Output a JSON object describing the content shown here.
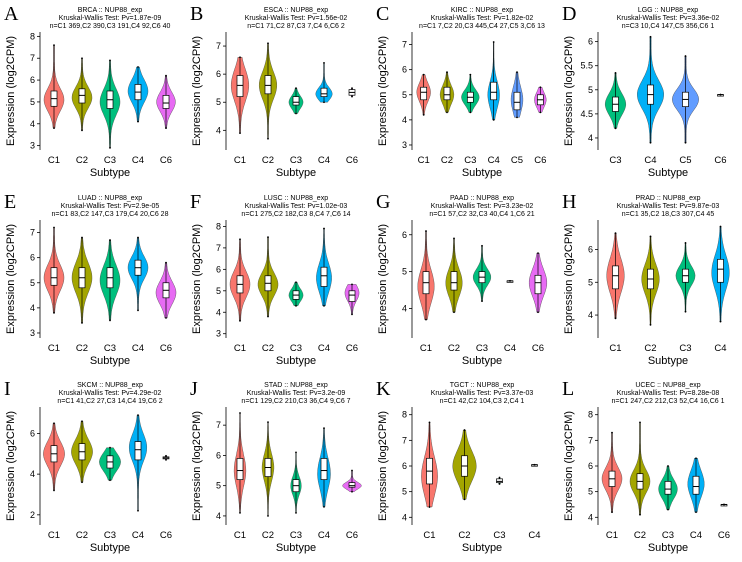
{
  "colors": {
    "C1": "#F8766D",
    "C2": "#A3A500",
    "C3": "#00BF7D",
    "C4": "#00B0F6",
    "C5": "#619CFF",
    "C6": "#E76BF3"
  },
  "chart_data": [
    {
      "letter": "A",
      "type": "violin",
      "title": "BRCA :: NUP88_exp",
      "subtitle": "Kruskal-Wallis Test: Pv=1.87e-09",
      "counts": "n=C1 369,C2 390,C3 191,C4 92,C6 40",
      "xlabel": "Subtype",
      "ylabel": "Expression (log2CPM)",
      "ylim": [
        2.8,
        8.2
      ],
      "yticks": [
        3,
        4,
        5,
        6,
        7,
        8
      ],
      "groups": [
        {
          "name": "C1",
          "min": 3.8,
          "q1": 4.8,
          "median": 5.15,
          "q3": 5.5,
          "max": 7.6,
          "mode": 5.1,
          "width": 0.85
        },
        {
          "name": "C2",
          "min": 3.7,
          "q1": 4.95,
          "median": 5.3,
          "q3": 5.6,
          "max": 7.0,
          "mode": 5.2,
          "width": 0.85
        },
        {
          "name": "C3",
          "min": 2.9,
          "q1": 4.7,
          "median": 5.1,
          "q3": 5.5,
          "max": 6.9,
          "mode": 5.0,
          "width": 0.85
        },
        {
          "name": "C4",
          "min": 4.1,
          "q1": 5.1,
          "median": 5.45,
          "q3": 5.8,
          "max": 6.6,
          "mode": 5.5,
          "width": 0.85
        },
        {
          "name": "C6",
          "min": 3.8,
          "q1": 4.7,
          "median": 4.95,
          "q3": 5.3,
          "max": 6.2,
          "mode": 5.0,
          "width": 0.8
        }
      ]
    },
    {
      "letter": "B",
      "type": "violin",
      "title": "ESCA :: NUP88_exp",
      "subtitle": "Kruskal-Wallis Test: Pv=1.56e-02",
      "counts": "n=C1 71,C2 87,C3 7,C4 6,C6 2",
      "xlabel": "Subtype",
      "ylabel": "Expression (log2CPM)",
      "ylim": [
        3.3,
        7.5
      ],
      "yticks": [
        4,
        5,
        6,
        7
      ],
      "groups": [
        {
          "name": "C1",
          "min": 3.9,
          "q1": 5.2,
          "median": 5.6,
          "q3": 5.95,
          "max": 6.6,
          "mode": 5.6,
          "width": 0.75
        },
        {
          "name": "C2",
          "min": 3.7,
          "q1": 5.3,
          "median": 5.6,
          "q3": 5.95,
          "max": 7.1,
          "mode": 5.6,
          "width": 0.75
        },
        {
          "name": "C3",
          "min": 4.6,
          "q1": 4.9,
          "median": 5.0,
          "q3": 5.2,
          "max": 5.5,
          "mode": 5.0,
          "width": 0.6
        },
        {
          "name": "C4",
          "min": 5.0,
          "q1": 5.2,
          "median": 5.3,
          "q3": 5.5,
          "max": 6.4,
          "mode": 5.3,
          "width": 0.7
        },
        {
          "name": "C6",
          "min": 5.2,
          "q1": 5.25,
          "median": 5.35,
          "q3": 5.45,
          "max": 5.5,
          "mode": 5.35,
          "width": 0.08
        }
      ]
    },
    {
      "letter": "C",
      "type": "violin",
      "title": "KIRC :: NUP88_exp",
      "subtitle": "Kruskal-Wallis Test: Pv=1.82e-02",
      "counts": "n=C1 7,C2 20,C3 445,C4 27,C5 3,C6 13",
      "xlabel": "Subtype",
      "ylabel": "Expression (log2CPM)",
      "ylim": [
        2.8,
        7.5
      ],
      "yticks": [
        3,
        4,
        5,
        6,
        7
      ],
      "groups": [
        {
          "name": "C1",
          "min": 4.2,
          "q1": 4.8,
          "median": 5.1,
          "q3": 5.3,
          "max": 5.8,
          "mode": 5.1,
          "width": 0.7
        },
        {
          "name": "C2",
          "min": 4.3,
          "q1": 4.8,
          "median": 5.0,
          "q3": 5.3,
          "max": 5.9,
          "mode": 5.0,
          "width": 0.7
        },
        {
          "name": "C3",
          "min": 4.3,
          "q1": 4.7,
          "median": 4.9,
          "q3": 5.1,
          "max": 5.8,
          "mode": 4.9,
          "width": 0.9
        },
        {
          "name": "C4",
          "min": 4.0,
          "q1": 4.8,
          "median": 5.1,
          "q3": 5.5,
          "max": 7.1,
          "mode": 5.0,
          "width": 0.6
        },
        {
          "name": "C5",
          "min": 4.1,
          "q1": 4.4,
          "median": 4.7,
          "q3": 5.1,
          "max": 5.9,
          "mode": 4.8,
          "width": 0.6
        },
        {
          "name": "C6",
          "min": 4.3,
          "q1": 4.6,
          "median": 4.8,
          "q3": 5.0,
          "max": 5.3,
          "mode": 4.8,
          "width": 0.6
        }
      ]
    },
    {
      "letter": "D",
      "type": "violin",
      "title": "LGG :: NUP88_exp",
      "subtitle": "Kruskal-Wallis Test: Pv=3.36e-02",
      "counts": "n=C3 10,C4 147,C5 356,C6 1",
      "xlabel": "Subtype",
      "ylabel": "Expression (log2CPM)",
      "ylim": [
        3.75,
        6.2
      ],
      "yticks": [
        4.0,
        4.5,
        5.0,
        5.5,
        6.0
      ],
      "groups": [
        {
          "name": "C3",
          "min": 4.2,
          "q1": 4.55,
          "median": 4.7,
          "q3": 4.85,
          "max": 5.35,
          "mode": 4.7,
          "width": 0.7
        },
        {
          "name": "C4",
          "min": 3.9,
          "q1": 4.7,
          "median": 4.9,
          "q3": 5.1,
          "max": 6.1,
          "mode": 4.9,
          "width": 0.9
        },
        {
          "name": "C5",
          "min": 3.9,
          "q1": 4.65,
          "median": 4.8,
          "q3": 4.95,
          "max": 5.7,
          "mode": 4.8,
          "width": 0.9
        },
        {
          "name": "C6",
          "min": 4.9,
          "q1": 4.9,
          "median": 4.9,
          "q3": 4.9,
          "max": 4.9,
          "mode": 4.9,
          "width": 0
        }
      ]
    },
    {
      "letter": "E",
      "type": "violin",
      "title": "LUAD :: NUP88_exp",
      "subtitle": "Kruskal-Wallis Test: Pv=2.9e-05",
      "counts": "n=C1 83,C2 147,C3 179,C4 20,C6 28",
      "xlabel": "Subtype",
      "ylabel": "Expression (log2CPM)",
      "ylim": [
        2.8,
        7.5
      ],
      "yticks": [
        3,
        4,
        5,
        6,
        7
      ],
      "groups": [
        {
          "name": "C1",
          "min": 3.8,
          "q1": 4.9,
          "median": 5.2,
          "q3": 5.6,
          "max": 7.2,
          "mode": 5.2,
          "width": 0.85
        },
        {
          "name": "C2",
          "min": 3.4,
          "q1": 4.8,
          "median": 5.2,
          "q3": 5.6,
          "max": 6.8,
          "mode": 5.2,
          "width": 0.85
        },
        {
          "name": "C3",
          "min": 3.5,
          "q1": 4.8,
          "median": 5.2,
          "q3": 5.6,
          "max": 6.7,
          "mode": 5.1,
          "width": 0.85
        },
        {
          "name": "C4",
          "min": 3.9,
          "q1": 5.3,
          "median": 5.6,
          "q3": 5.9,
          "max": 6.8,
          "mode": 5.6,
          "width": 0.85
        },
        {
          "name": "C6",
          "min": 3.6,
          "q1": 4.4,
          "median": 4.7,
          "q3": 5.0,
          "max": 5.8,
          "mode": 4.6,
          "width": 0.85
        }
      ]
    },
    {
      "letter": "F",
      "type": "violin",
      "title": "LUSC :: NUP88_exp",
      "subtitle": "Kruskal-Wallis Test: Pv=1.02e-03",
      "counts": "n=C1 275,C2 182,C3 8,C4 7,C6 14",
      "xlabel": "Subtype",
      "ylabel": "Expression (log2CPM)",
      "ylim": [
        2.8,
        8.3
      ],
      "yticks": [
        3,
        4,
        5,
        6,
        7,
        8
      ],
      "groups": [
        {
          "name": "C1",
          "min": 3.6,
          "q1": 4.9,
          "median": 5.3,
          "q3": 5.7,
          "max": 7.4,
          "mode": 5.3,
          "width": 0.85
        },
        {
          "name": "C2",
          "min": 3.8,
          "q1": 5.0,
          "median": 5.35,
          "q3": 5.7,
          "max": 7.5,
          "mode": 5.3,
          "width": 0.85
        },
        {
          "name": "C3",
          "min": 4.3,
          "q1": 4.6,
          "median": 4.8,
          "q3": 5.0,
          "max": 5.4,
          "mode": 4.8,
          "width": 0.6
        },
        {
          "name": "C4",
          "min": 4.3,
          "q1": 5.2,
          "median": 5.7,
          "q3": 6.1,
          "max": 7.9,
          "mode": 5.6,
          "width": 0.65
        },
        {
          "name": "C6",
          "min": 3.9,
          "q1": 4.5,
          "median": 4.8,
          "q3": 5.0,
          "max": 5.3,
          "mode": 4.9,
          "width": 0.6
        }
      ]
    },
    {
      "letter": "G",
      "type": "violin",
      "title": "PAAD :: NUP88_exp",
      "subtitle": "Kruskal-Wallis Test: Pv=3.23e-02",
      "counts": "n=C1 57,C2 32,C3 40,C4 1,C6 21",
      "xlabel": "Subtype",
      "ylabel": "Expression (log2CPM)",
      "ylim": [
        3.2,
        6.4
      ],
      "yticks": [
        4,
        5,
        6
      ],
      "groups": [
        {
          "name": "C1",
          "min": 3.7,
          "q1": 4.4,
          "median": 4.7,
          "q3": 5.0,
          "max": 6.1,
          "mode": 4.6,
          "width": 0.7
        },
        {
          "name": "C2",
          "min": 3.9,
          "q1": 4.5,
          "median": 4.7,
          "q3": 5.0,
          "max": 5.9,
          "mode": 4.7,
          "width": 0.7
        },
        {
          "name": "C3",
          "min": 4.2,
          "q1": 4.7,
          "median": 4.85,
          "q3": 5.0,
          "max": 5.7,
          "mode": 4.85,
          "width": 0.75
        },
        {
          "name": "C4",
          "min": 4.75,
          "q1": 4.75,
          "median": 4.75,
          "q3": 4.75,
          "max": 4.75,
          "mode": 4.75,
          "width": 0
        },
        {
          "name": "C6",
          "min": 3.9,
          "q1": 4.4,
          "median": 4.7,
          "q3": 4.9,
          "max": 5.5,
          "mode": 4.7,
          "width": 0.75
        }
      ]
    },
    {
      "letter": "H",
      "type": "violin",
      "title": "PRAD :: NUP88_exp",
      "subtitle": "Kruskal-Wallis Test: Pv=9.87e-03",
      "counts": "n=C1 35,C2 18,C3 307,C4 45",
      "xlabel": "Subtype",
      "ylabel": "Expression (log2CPM)",
      "ylim": [
        3.3,
        6.9
      ],
      "yticks": [
        4,
        5,
        6
      ],
      "groups": [
        {
          "name": "C1",
          "min": 3.9,
          "q1": 4.8,
          "median": 5.2,
          "q3": 5.5,
          "max": 6.5,
          "mode": 5.2,
          "width": 0.6
        },
        {
          "name": "C2",
          "min": 3.7,
          "q1": 4.8,
          "median": 5.1,
          "q3": 5.4,
          "max": 6.4,
          "mode": 5.1,
          "width": 0.6
        },
        {
          "name": "C3",
          "min": 4.1,
          "q1": 5.0,
          "median": 5.2,
          "q3": 5.4,
          "max": 6.2,
          "mode": 5.2,
          "width": 0.65
        },
        {
          "name": "C4",
          "min": 3.8,
          "q1": 5.0,
          "median": 5.4,
          "q3": 5.7,
          "max": 6.7,
          "mode": 5.3,
          "width": 0.6
        }
      ]
    },
    {
      "letter": "I",
      "type": "violin",
      "title": "SKCM :: NUP88_exp",
      "subtitle": "Kruskal-Wallis Test: Pv=4.29e-02",
      "counts": "n=C1 41,C2 27,C3 14,C4 19,C6 2",
      "xlabel": "Subtype",
      "ylabel": "Expression (log2CPM)",
      "ylim": [
        1.5,
        7.3
      ],
      "yticks": [
        2,
        4,
        6
      ],
      "groups": [
        {
          "name": "C1",
          "min": 3.2,
          "q1": 4.6,
          "median": 5.0,
          "q3": 5.4,
          "max": 6.5,
          "mode": 5.0,
          "width": 0.9
        },
        {
          "name": "C2",
          "min": 3.6,
          "q1": 4.7,
          "median": 5.1,
          "q3": 5.5,
          "max": 6.6,
          "mode": 5.1,
          "width": 0.9
        },
        {
          "name": "C3",
          "min": 3.7,
          "q1": 4.3,
          "median": 4.6,
          "q3": 4.9,
          "max": 5.3,
          "mode": 4.6,
          "width": 0.9
        },
        {
          "name": "C4",
          "min": 2.2,
          "q1": 4.7,
          "median": 5.2,
          "q3": 5.6,
          "max": 6.9,
          "mode": 5.3,
          "width": 0.75
        },
        {
          "name": "C6",
          "min": 4.7,
          "q1": 4.75,
          "median": 4.8,
          "q3": 4.85,
          "max": 4.9,
          "mode": 4.8,
          "width": 0.1
        }
      ]
    },
    {
      "letter": "J",
      "type": "violin",
      "title": "STAD :: NUP88_exp",
      "subtitle": "Kruskal-Wallis Test: Pv=3.2e-09",
      "counts": "n=C1 129,C2 210,C3 36,C4 9,C6 7",
      "xlabel": "Subtype",
      "ylabel": "Expression (log2CPM)",
      "ylim": [
        3.7,
        7.6
      ],
      "yticks": [
        4,
        5,
        6,
        7
      ],
      "groups": [
        {
          "name": "C1",
          "min": 4.1,
          "q1": 5.2,
          "median": 5.5,
          "q3": 5.9,
          "max": 7.4,
          "mode": 5.5,
          "width": 0.5
        },
        {
          "name": "C2",
          "min": 4.0,
          "q1": 5.3,
          "median": 5.6,
          "q3": 5.9,
          "max": 7.1,
          "mode": 5.6,
          "width": 0.5
        },
        {
          "name": "C3",
          "min": 4.1,
          "q1": 4.8,
          "median": 5.0,
          "q3": 5.2,
          "max": 6.1,
          "mode": 5.0,
          "width": 0.45
        },
        {
          "name": "C4",
          "min": 4.3,
          "q1": 5.2,
          "median": 5.5,
          "q3": 5.9,
          "max": 6.9,
          "mode": 5.4,
          "width": 0.55
        },
        {
          "name": "C6",
          "min": 4.8,
          "q1": 4.95,
          "median": 5.0,
          "q3": 5.1,
          "max": 5.5,
          "mode": 5.0,
          "width": 0.8
        }
      ]
    },
    {
      "letter": "K",
      "type": "violin",
      "title": "TGCT :: NUP88_exp",
      "subtitle": "Kruskal-Wallis Test: Pv=3.37e-03",
      "counts": "n=C1 42,C2 104,C3 2,C4 1",
      "xlabel": "Subtype",
      "ylabel": "Expression (log2CPM)",
      "ylim": [
        3.7,
        8.3
      ],
      "yticks": [
        4,
        5,
        6,
        7,
        8
      ],
      "groups": [
        {
          "name": "C1",
          "min": 4.4,
          "q1": 5.3,
          "median": 5.8,
          "q3": 6.3,
          "max": 7.7,
          "mode": 5.6,
          "width": 0.55
        },
        {
          "name": "C2",
          "min": 4.7,
          "q1": 5.6,
          "median": 6.0,
          "q3": 6.4,
          "max": 7.4,
          "mode": 6.0,
          "width": 0.8
        },
        {
          "name": "C3",
          "min": 5.3,
          "q1": 5.35,
          "median": 5.4,
          "q3": 5.5,
          "max": 5.55,
          "mode": 5.4,
          "width": 0.08
        },
        {
          "name": "C4",
          "min": 6.05,
          "q1": 6.05,
          "median": 6.05,
          "q3": 6.05,
          "max": 6.05,
          "mode": 6.05,
          "width": 0
        }
      ]
    },
    {
      "letter": "L",
      "type": "violin",
      "title": "UCEC :: NUP88_exp",
      "subtitle": "Kruskal-Wallis Test: Pv=8.28e-08",
      "counts": "n=C1 247,C2 212,C3 52,C4 16,C6 1",
      "xlabel": "Subtype",
      "ylabel": "Expression (log2CPM)",
      "ylim": [
        3.7,
        8.3
      ],
      "yticks": [
        4,
        5,
        6,
        7,
        8
      ],
      "groups": [
        {
          "name": "C1",
          "min": 4.2,
          "q1": 5.2,
          "median": 5.5,
          "q3": 5.8,
          "max": 7.3,
          "mode": 5.5,
          "width": 0.85
        },
        {
          "name": "C2",
          "min": 4.1,
          "q1": 5.1,
          "median": 5.4,
          "q3": 5.7,
          "max": 7.7,
          "mode": 5.4,
          "width": 0.85
        },
        {
          "name": "C3",
          "min": 4.3,
          "q1": 4.9,
          "median": 5.1,
          "q3": 5.4,
          "max": 6.0,
          "mode": 5.1,
          "width": 0.8
        },
        {
          "name": "C4",
          "min": 4.2,
          "q1": 4.9,
          "median": 5.2,
          "q3": 5.6,
          "max": 6.3,
          "mode": 5.3,
          "width": 0.7
        },
        {
          "name": "C6",
          "min": 4.5,
          "q1": 4.5,
          "median": 4.5,
          "q3": 4.5,
          "max": 4.5,
          "mode": 4.5,
          "width": 0
        }
      ]
    }
  ]
}
